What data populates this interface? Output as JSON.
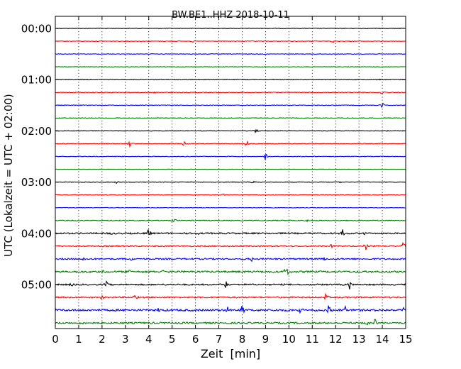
{
  "chart_data": {
    "type": "line",
    "title": "BW.BE1..HHZ 2018-10-11",
    "xlabel": "Zeit  [min]",
    "ylabel": "UTC (Lokalzeit = UTC + 02:00)",
    "xlim": [
      0,
      15
    ],
    "x_ticks": [
      "0",
      "1",
      "2",
      "3",
      "4",
      "5",
      "6",
      "7",
      "8",
      "9",
      "10",
      "11",
      "12",
      "13",
      "14",
      "15"
    ],
    "y_ticks": [
      {
        "label": "00:00",
        "trace": 0
      },
      {
        "label": "01:00",
        "trace": 4
      },
      {
        "label": "02:00",
        "trace": 8
      },
      {
        "label": "03:00",
        "trace": 12
      },
      {
        "label": "04:00",
        "trace": 16
      },
      {
        "label": "05:00",
        "trace": 20
      }
    ],
    "trace_minutes": 15,
    "grid": "vertical dotted",
    "colors": [
      "#000000",
      "#ff0000",
      "#0000ff",
      "#008000"
    ],
    "traces": [
      {
        "noise": 0.4,
        "events": []
      },
      {
        "noise": 0.4,
        "events": [
          [
            5.9,
            2
          ],
          [
            11.9,
            3
          ]
        ]
      },
      {
        "noise": 0.4,
        "events": []
      },
      {
        "noise": 0.4,
        "events": []
      },
      {
        "noise": 0.4,
        "events": [
          [
            13.9,
            2
          ]
        ]
      },
      {
        "noise": 0.5,
        "events": [
          [
            4.3,
            2
          ],
          [
            14.0,
            4
          ]
        ]
      },
      {
        "noise": 0.4,
        "events": [
          [
            14.0,
            5
          ]
        ]
      },
      {
        "noise": 0.5,
        "events": [
          [
            1.0,
            2
          ]
        ]
      },
      {
        "noise": 0.4,
        "events": [
          [
            8.6,
            6
          ],
          [
            14.2,
            2
          ]
        ]
      },
      {
        "noise": 0.5,
        "events": [
          [
            3.2,
            5
          ],
          [
            5.5,
            4
          ],
          [
            8.2,
            6
          ]
        ]
      },
      {
        "noise": 0.4,
        "events": [
          [
            9.0,
            6
          ]
        ]
      },
      {
        "noise": 0.3,
        "events": []
      },
      {
        "noise": 0.4,
        "events": [
          [
            2.6,
            3
          ],
          [
            8.5,
            5
          ],
          [
            12.2,
            2
          ]
        ]
      },
      {
        "noise": 0.4,
        "events": [
          [
            7.2,
            2
          ]
        ]
      },
      {
        "noise": 0.3,
        "events": []
      },
      {
        "noise": 0.6,
        "events": [
          [
            5.1,
            4
          ],
          [
            10.8,
            3
          ]
        ]
      },
      {
        "noise": 1.0,
        "events": [
          [
            2.4,
            3
          ],
          [
            4.0,
            6
          ],
          [
            6.1,
            2
          ],
          [
            12.3,
            6
          ],
          [
            13.2,
            3
          ]
        ]
      },
      {
        "noise": 0.9,
        "events": [
          [
            11.8,
            5
          ],
          [
            13.3,
            5
          ],
          [
            14.9,
            6
          ]
        ]
      },
      {
        "noise": 1.0,
        "events": [
          [
            1.2,
            3
          ],
          [
            3.3,
            4
          ],
          [
            8.4,
            5
          ],
          [
            11.5,
            3
          ]
        ]
      },
      {
        "noise": 1.2,
        "events": [
          [
            0.6,
            3
          ],
          [
            2.1,
            3
          ],
          [
            3.2,
            4
          ],
          [
            4.6,
            3
          ],
          [
            9.9,
            12
          ]
        ]
      },
      {
        "noise": 1.0,
        "events": [
          [
            0.7,
            5
          ],
          [
            2.2,
            7
          ],
          [
            7.3,
            8
          ],
          [
            12.6,
            6
          ]
        ]
      },
      {
        "noise": 1.0,
        "events": [
          [
            2.0,
            5
          ],
          [
            3.4,
            5
          ],
          [
            11.6,
            7
          ]
        ]
      },
      {
        "noise": 1.4,
        "events": [
          [
            4.4,
            4
          ],
          [
            7.4,
            9
          ],
          [
            8.0,
            8
          ],
          [
            10.5,
            5
          ],
          [
            11.7,
            8
          ],
          [
            12.4,
            8
          ],
          [
            14.9,
            6
          ]
        ]
      },
      {
        "noise": 1.1,
        "events": [
          [
            1.2,
            5
          ],
          [
            13.7,
            8
          ],
          [
            13.4,
            6
          ]
        ]
      }
    ]
  }
}
